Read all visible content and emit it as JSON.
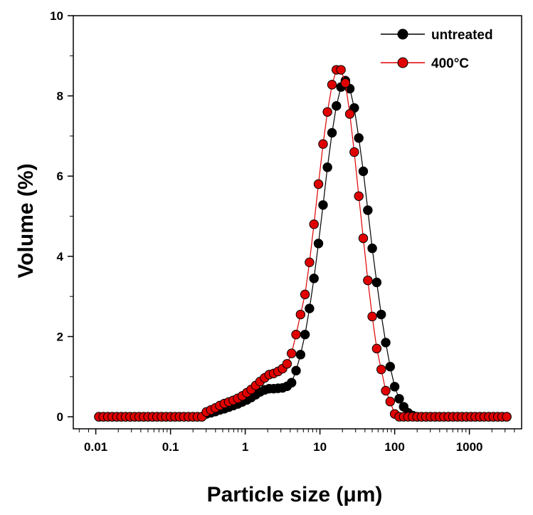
{
  "chart_data": {
    "type": "scatter",
    "xlabel": "Particle size (μm)",
    "ylabel": "Volume (%)",
    "xscale": "log",
    "xlim": [
      0.005,
      5000
    ],
    "ylim": [
      -0.3,
      10
    ],
    "xticks": [
      0.01,
      0.1,
      1,
      10,
      100,
      1000
    ],
    "xtick_labels": [
      "0.01",
      "0.1",
      "1",
      "10",
      "100",
      "1000"
    ],
    "yticks": [
      0,
      2,
      4,
      6,
      8,
      10
    ],
    "ytick_labels": [
      "0",
      "2",
      "4",
      "6",
      "8",
      "10"
    ],
    "grid": false,
    "legend": "top-right",
    "series": [
      {
        "name": "untreated",
        "color": "#000000",
        "x": [
          0.011,
          0.0126,
          0.0145,
          0.0166,
          0.0191,
          0.0219,
          0.0251,
          0.0288,
          0.0331,
          0.038,
          0.0437,
          0.0501,
          0.0575,
          0.0661,
          0.0759,
          0.0871,
          0.1,
          0.115,
          0.132,
          0.151,
          0.174,
          0.2,
          0.229,
          0.263,
          0.302,
          0.347,
          0.398,
          0.457,
          0.525,
          0.603,
          0.692,
          0.794,
          0.912,
          1.05,
          1.2,
          1.38,
          1.58,
          1.82,
          2.09,
          2.4,
          2.75,
          3.16,
          3.63,
          4.17,
          4.79,
          5.5,
          6.31,
          7.24,
          8.32,
          9.55,
          11.0,
          12.6,
          14.5,
          16.6,
          19.1,
          21.9,
          25.1,
          28.8,
          33.1,
          38.0,
          43.7,
          50.1,
          57.5,
          66.1,
          75.9,
          87.1,
          100,
          115,
          132,
          151,
          174,
          200,
          229,
          263,
          302,
          347,
          398,
          457,
          525,
          603,
          692,
          794,
          912,
          1050,
          1200,
          1380,
          1580,
          1820,
          2090,
          2400,
          2750,
          3160
        ],
        "y": [
          0,
          0,
          0,
          0,
          0,
          0,
          0,
          0,
          0,
          0,
          0,
          0,
          0,
          0,
          0,
          0,
          0,
          0,
          0,
          0,
          0,
          0,
          0,
          0,
          0.07,
          0.1,
          0.13,
          0.17,
          0.2,
          0.24,
          0.28,
          0.32,
          0.37,
          0.42,
          0.48,
          0.55,
          0.62,
          0.67,
          0.7,
          0.7,
          0.71,
          0.72,
          0.76,
          0.85,
          1.15,
          1.55,
          2.05,
          2.7,
          3.45,
          4.32,
          5.28,
          6.22,
          7.08,
          7.75,
          8.22,
          8.38,
          8.18,
          7.7,
          6.95,
          6.12,
          5.15,
          4.2,
          3.35,
          2.55,
          1.85,
          1.25,
          0.75,
          0.45,
          0.25,
          0.1,
          0.03,
          0,
          0,
          0,
          0,
          0,
          0,
          0,
          0,
          0,
          0,
          0,
          0,
          0,
          0,
          0,
          0,
          0,
          0,
          0,
          0,
          0
        ]
      },
      {
        "name": "400°C",
        "color": "#e00000",
        "x": [
          0.011,
          0.0126,
          0.0145,
          0.0166,
          0.0191,
          0.0219,
          0.0251,
          0.0288,
          0.0331,
          0.038,
          0.0437,
          0.0501,
          0.0575,
          0.0661,
          0.0759,
          0.0871,
          0.1,
          0.115,
          0.132,
          0.151,
          0.174,
          0.2,
          0.229,
          0.263,
          0.302,
          0.347,
          0.398,
          0.457,
          0.525,
          0.603,
          0.692,
          0.794,
          0.912,
          1.05,
          1.2,
          1.38,
          1.58,
          1.82,
          2.09,
          2.4,
          2.75,
          3.16,
          3.63,
          4.17,
          4.79,
          5.5,
          6.31,
          7.24,
          8.32,
          9.55,
          11.0,
          12.6,
          14.5,
          16.6,
          19.1,
          21.9,
          25.1,
          28.8,
          33.1,
          38.0,
          43.7,
          50.1,
          57.5,
          66.1,
          75.9,
          87.1,
          100,
          115,
          132,
          151,
          174,
          200,
          229,
          263,
          302,
          347,
          398,
          457,
          525,
          603,
          692,
          794,
          912,
          1050,
          1200,
          1380,
          1580,
          1820,
          2090,
          2400,
          2750,
          3160
        ],
        "y": [
          0,
          0,
          0,
          0,
          0,
          0,
          0,
          0,
          0,
          0,
          0,
          0,
          0,
          0,
          0,
          0,
          0,
          0,
          0,
          0,
          0,
          0,
          0,
          0,
          0.12,
          0.17,
          0.22,
          0.28,
          0.33,
          0.37,
          0.41,
          0.46,
          0.52,
          0.6,
          0.68,
          0.78,
          0.88,
          0.97,
          1.05,
          1.08,
          1.13,
          1.2,
          1.32,
          1.58,
          2.05,
          2.55,
          3.05,
          3.85,
          4.8,
          5.8,
          6.8,
          7.6,
          8.28,
          8.65,
          8.65,
          8.32,
          7.55,
          6.6,
          5.5,
          4.45,
          3.4,
          2.5,
          1.7,
          1.18,
          0.65,
          0.38,
          0.07,
          0,
          0,
          0,
          0,
          0,
          0,
          0,
          0,
          0,
          0,
          0,
          0,
          0,
          0,
          0,
          0,
          0,
          0,
          0,
          0,
          0,
          0,
          0,
          0,
          0
        ]
      }
    ]
  }
}
